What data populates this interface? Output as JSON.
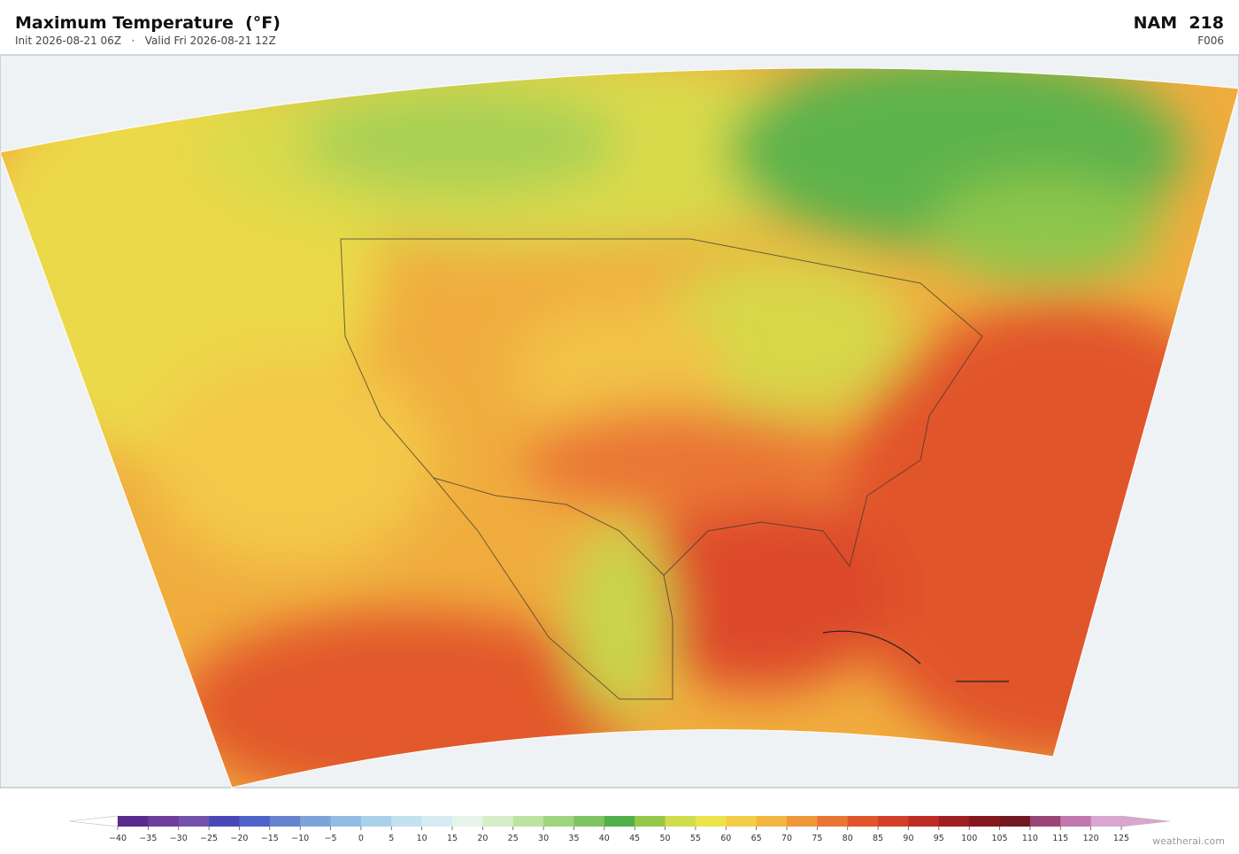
{
  "header": {
    "title": "Maximum Temperature  (°F)",
    "init": "Init 2026-08-21 06Z",
    "separator": "·",
    "valid": "Valid Fri 2026-08-21 12Z",
    "model": "NAM  218",
    "forecast_hour": "F006"
  },
  "colorbar": {
    "ticks": [
      {
        "value": -40,
        "label": "−40"
      },
      {
        "value": -35,
        "label": "−35"
      },
      {
        "value": -30,
        "label": "−30"
      },
      {
        "value": -25,
        "label": "−25"
      },
      {
        "value": -20,
        "label": "−20"
      },
      {
        "value": -15,
        "label": "−15"
      },
      {
        "value": -10,
        "label": "−10"
      },
      {
        "value": -5,
        "label": "−5"
      },
      0,
      5,
      10,
      15,
      20,
      25,
      30,
      35,
      40,
      45,
      50,
      55,
      60,
      65,
      70,
      75,
      80,
      85,
      90,
      95,
      100,
      105,
      110,
      115,
      120,
      125
    ],
    "colors": [
      "#5a2a8c",
      "#6e3d9e",
      "#7452ab",
      "#4a48b8",
      "#4f63c8",
      "#6683cf",
      "#7ea3d9",
      "#92bde2",
      "#a9d2ea",
      "#c2e2ef",
      "#d7ecf2",
      "#e6f3ea",
      "#d7ecc8",
      "#bde3a0",
      "#9fd47e",
      "#7ec462",
      "#52b04c",
      "#96c84a",
      "#cfdc4c",
      "#ece34a",
      "#f3cd48",
      "#f2b540",
      "#ef983a",
      "#ea7634",
      "#e2552b",
      "#d3402a",
      "#bd2d24",
      "#9e1f20",
      "#85181c",
      "#731820",
      "#9a4577",
      "#c078ae",
      "#d8a6cf"
    ],
    "under_color": "#ffffff",
    "over_color": "#d8a6cf"
  },
  "watermark": "weatherai.com"
}
